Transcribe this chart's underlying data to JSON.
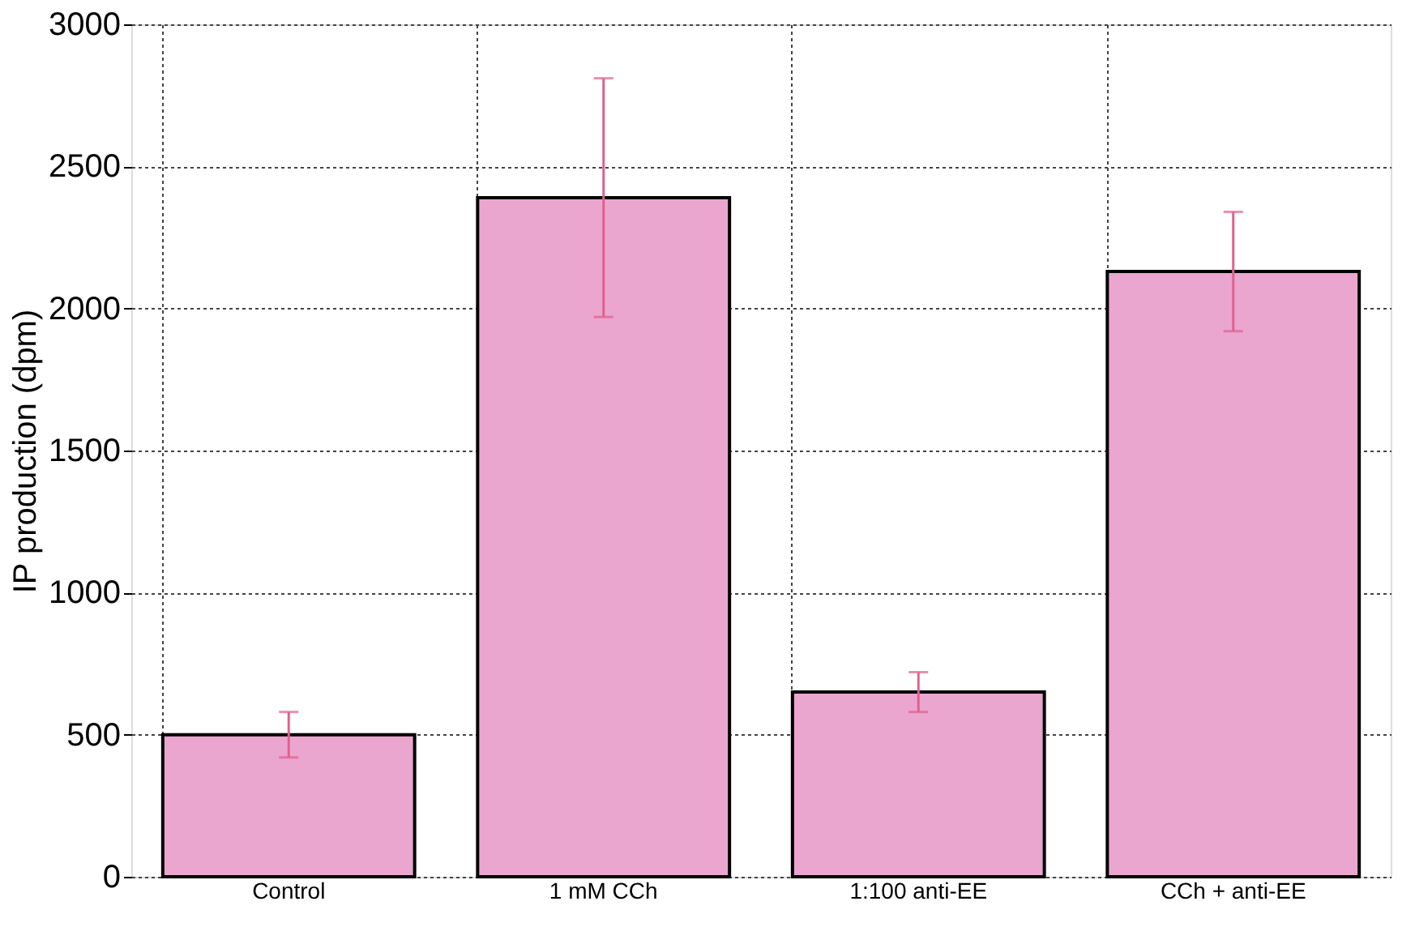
{
  "chart_data": {
    "type": "bar",
    "ylabel": "IP production (dpm)",
    "categories": [
      "Control",
      "1 mM CCh",
      "1:100 anti-EE",
      "CCh + anti-EE"
    ],
    "values": [
      500,
      2390,
      650,
      2130
    ],
    "errors": [
      80,
      420,
      70,
      210
    ],
    "color": "#eaa6cf",
    "ylim": [
      0,
      3000
    ],
    "yticks": [
      0,
      500,
      1000,
      1500,
      2000,
      2500,
      3000
    ],
    "grid": true
  }
}
